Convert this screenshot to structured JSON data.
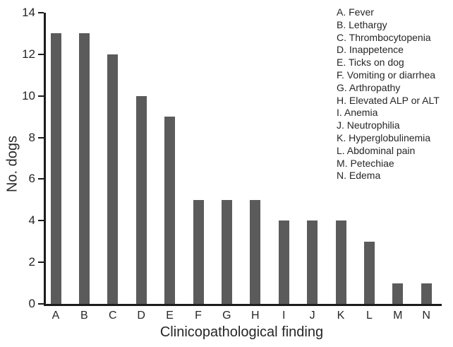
{
  "chart_data": {
    "type": "bar",
    "title": "",
    "xlabel": "Clinicopathological finding",
    "ylabel": "No. dogs",
    "categories": [
      "A",
      "B",
      "C",
      "D",
      "E",
      "F",
      "G",
      "H",
      "I",
      "J",
      "K",
      "L",
      "M",
      "N"
    ],
    "values": [
      13,
      13,
      12,
      10,
      9,
      5,
      5,
      5,
      4,
      4,
      4,
      3,
      1,
      1
    ],
    "ylim": [
      0,
      14
    ],
    "yticks": [
      0,
      2,
      4,
      6,
      8,
      10,
      12,
      14
    ],
    "grid": false,
    "bar_color": "#5b5b5b",
    "axis_color": "#1c1c1c",
    "text_color": "#262626",
    "legend_position": "top-right",
    "legend": [
      "A. Fever",
      "B. Lethargy",
      "C. Thrombocytopenia",
      "D. Inappetence",
      "E. Ticks on dog",
      "F. Vomiting or diarrhea",
      "G. Arthropathy",
      "H. Elevated ALP or ALT",
      "I. Anemia",
      "J. Neutrophilia",
      "K. Hyperglobulinemia",
      "L. Abdominal pain",
      "M. Petechiae",
      "N. Edema"
    ]
  }
}
